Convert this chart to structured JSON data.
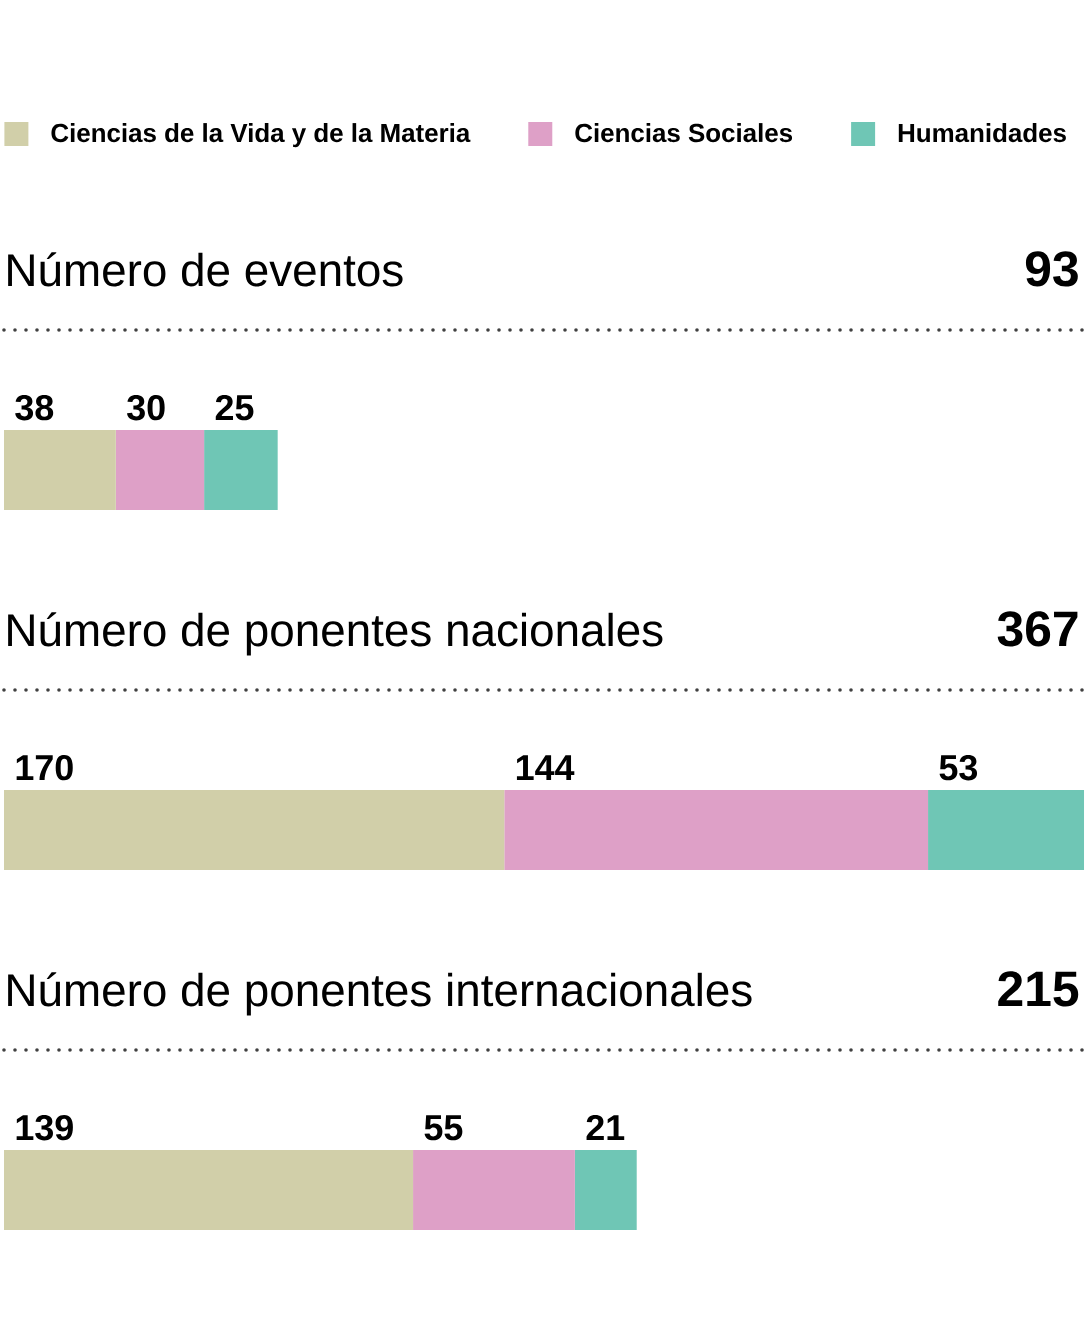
{
  "chart_data": {
    "type": "bar",
    "orientation": "horizontal",
    "stacked": true,
    "categories": [
      "Número de eventos",
      "Número de ponentes nacionales",
      "Número de ponentes internacionales"
    ],
    "series": [
      {
        "name": "Ciencias de la Vida y de la Materia",
        "color": "#d1cfa9",
        "values": [
          38,
          170,
          139
        ]
      },
      {
        "name": "Ciencias Sociales",
        "color": "#dea0c7",
        "values": [
          30,
          144,
          55
        ]
      },
      {
        "name": "Humanidades",
        "color": "#6fc6b5",
        "values": [
          25,
          53,
          21
        ]
      }
    ],
    "annotations": [
      "93",
      "367",
      "215"
    ],
    "data_labels": true,
    "tick_labels": "y",
    "legend": "top"
  }
}
